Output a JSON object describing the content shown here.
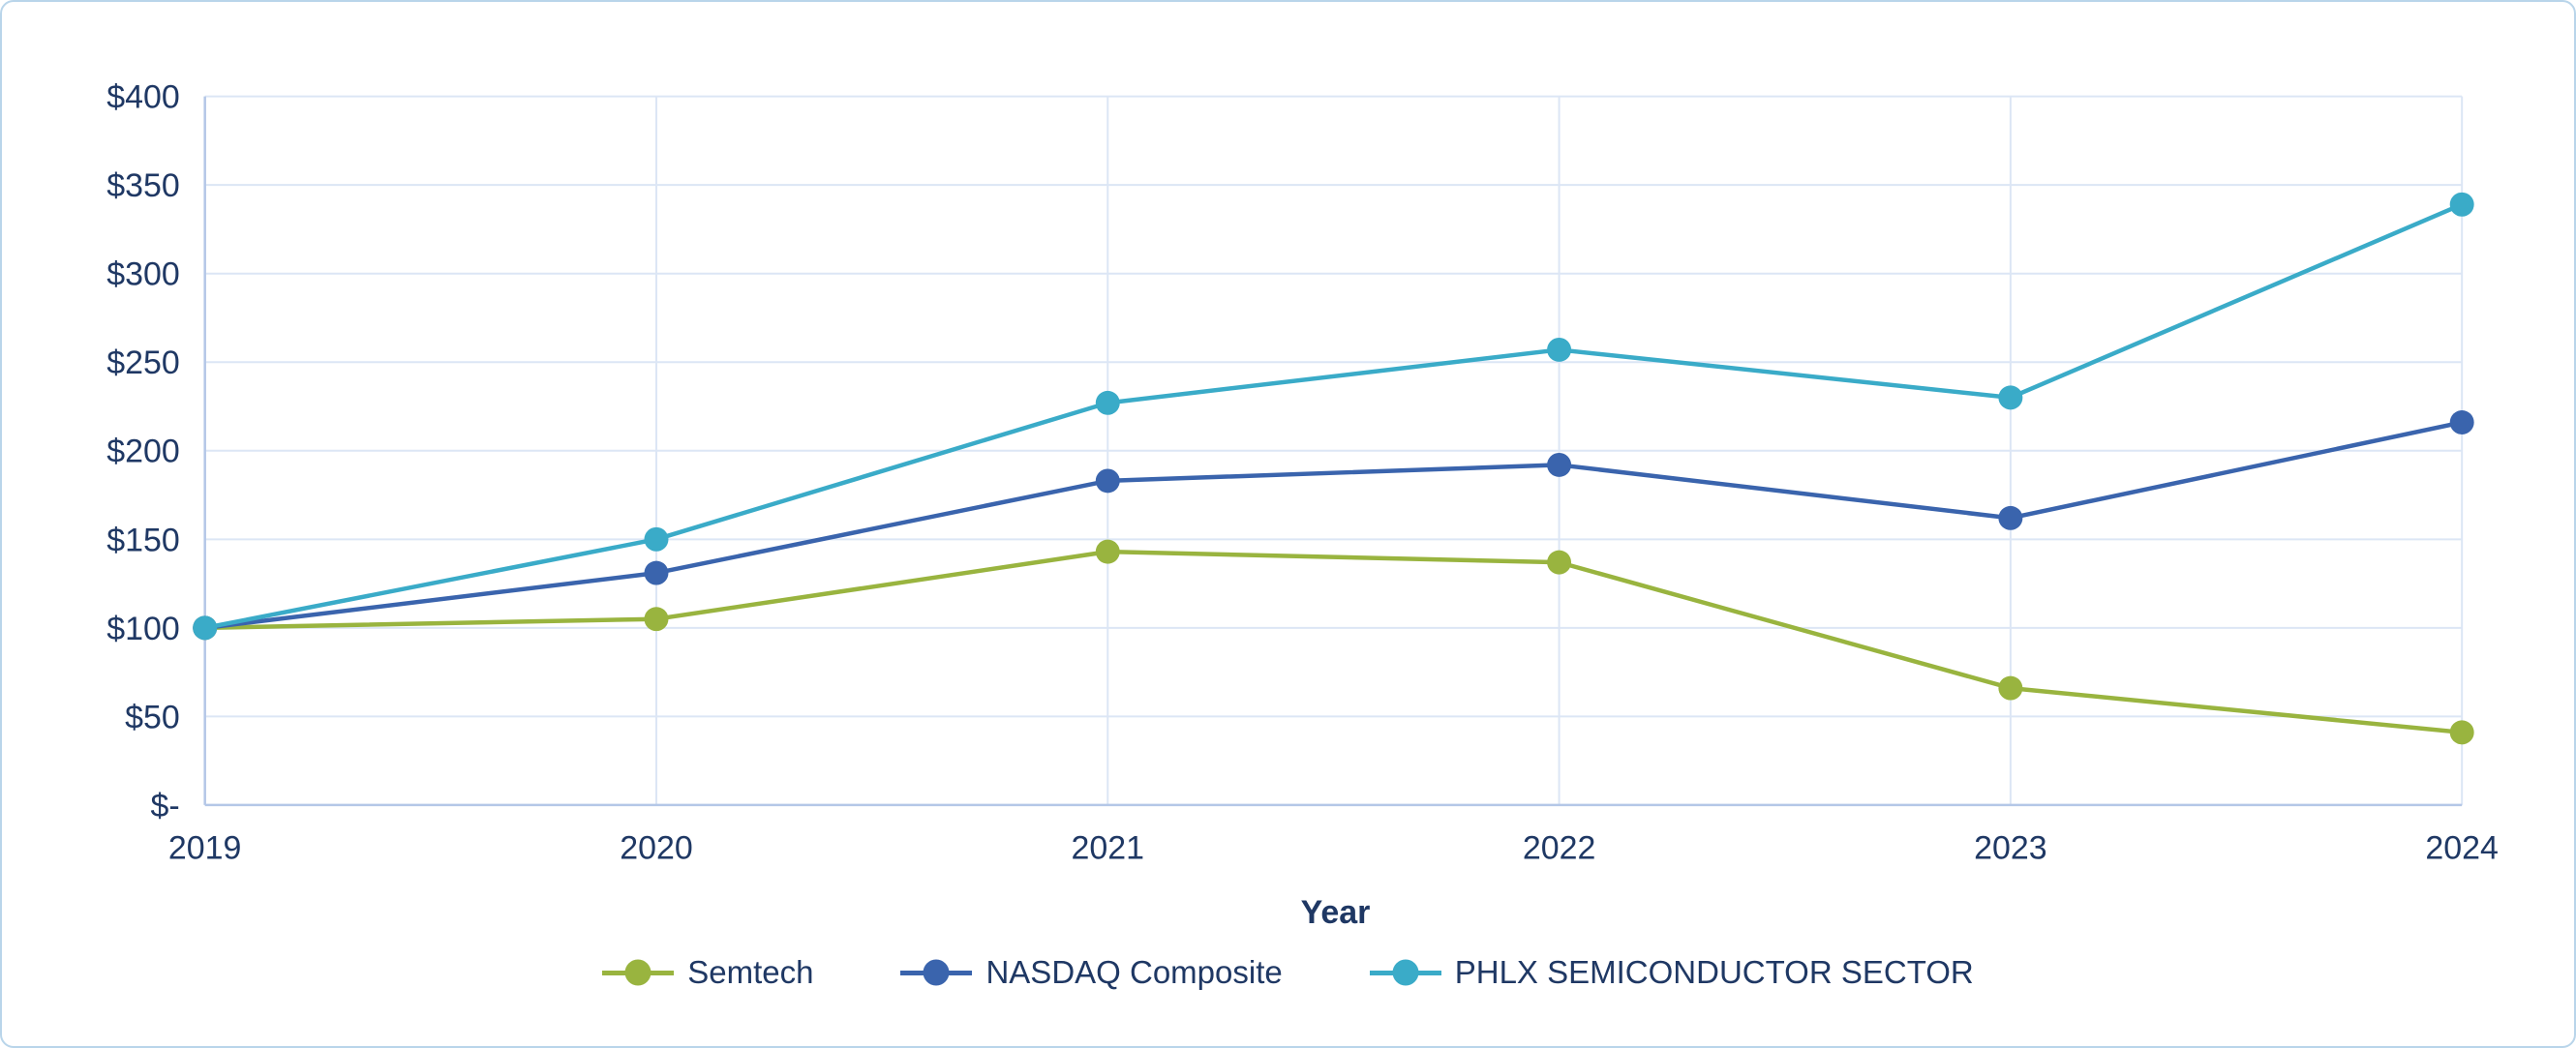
{
  "chart_data": {
    "type": "line",
    "x": [
      "2019",
      "2020",
      "2021",
      "2022",
      "2023",
      "2024"
    ],
    "series": [
      {
        "name": "Semtech",
        "color": "#99b43f",
        "values": [
          100,
          105,
          143,
          137,
          66,
          41
        ]
      },
      {
        "name": "NASDAQ Composite",
        "color": "#3a64ad",
        "values": [
          100,
          131,
          183,
          192,
          162,
          216
        ]
      },
      {
        "name": "PHLX SEMICONDUCTOR SECTOR",
        "color": "#3aabc8",
        "values": [
          100,
          150,
          227,
          257,
          230,
          339
        ]
      }
    ],
    "xlabel": "Year",
    "ylabel": "",
    "ylim": [
      0,
      400
    ],
    "ytick_step": 50,
    "ytick_labels": [
      "$-",
      "$50",
      "$100",
      "$150",
      "$200",
      "$250",
      "$300",
      "$350",
      "$400"
    ],
    "grid": true,
    "legend_position": "bottom"
  },
  "colors": {
    "axis_text": "#1f3864",
    "gridline": "#dce6f5",
    "axis_line": "#b4c7e7",
    "frame_border": "#b9d5ea",
    "background": "#ffffff"
  }
}
